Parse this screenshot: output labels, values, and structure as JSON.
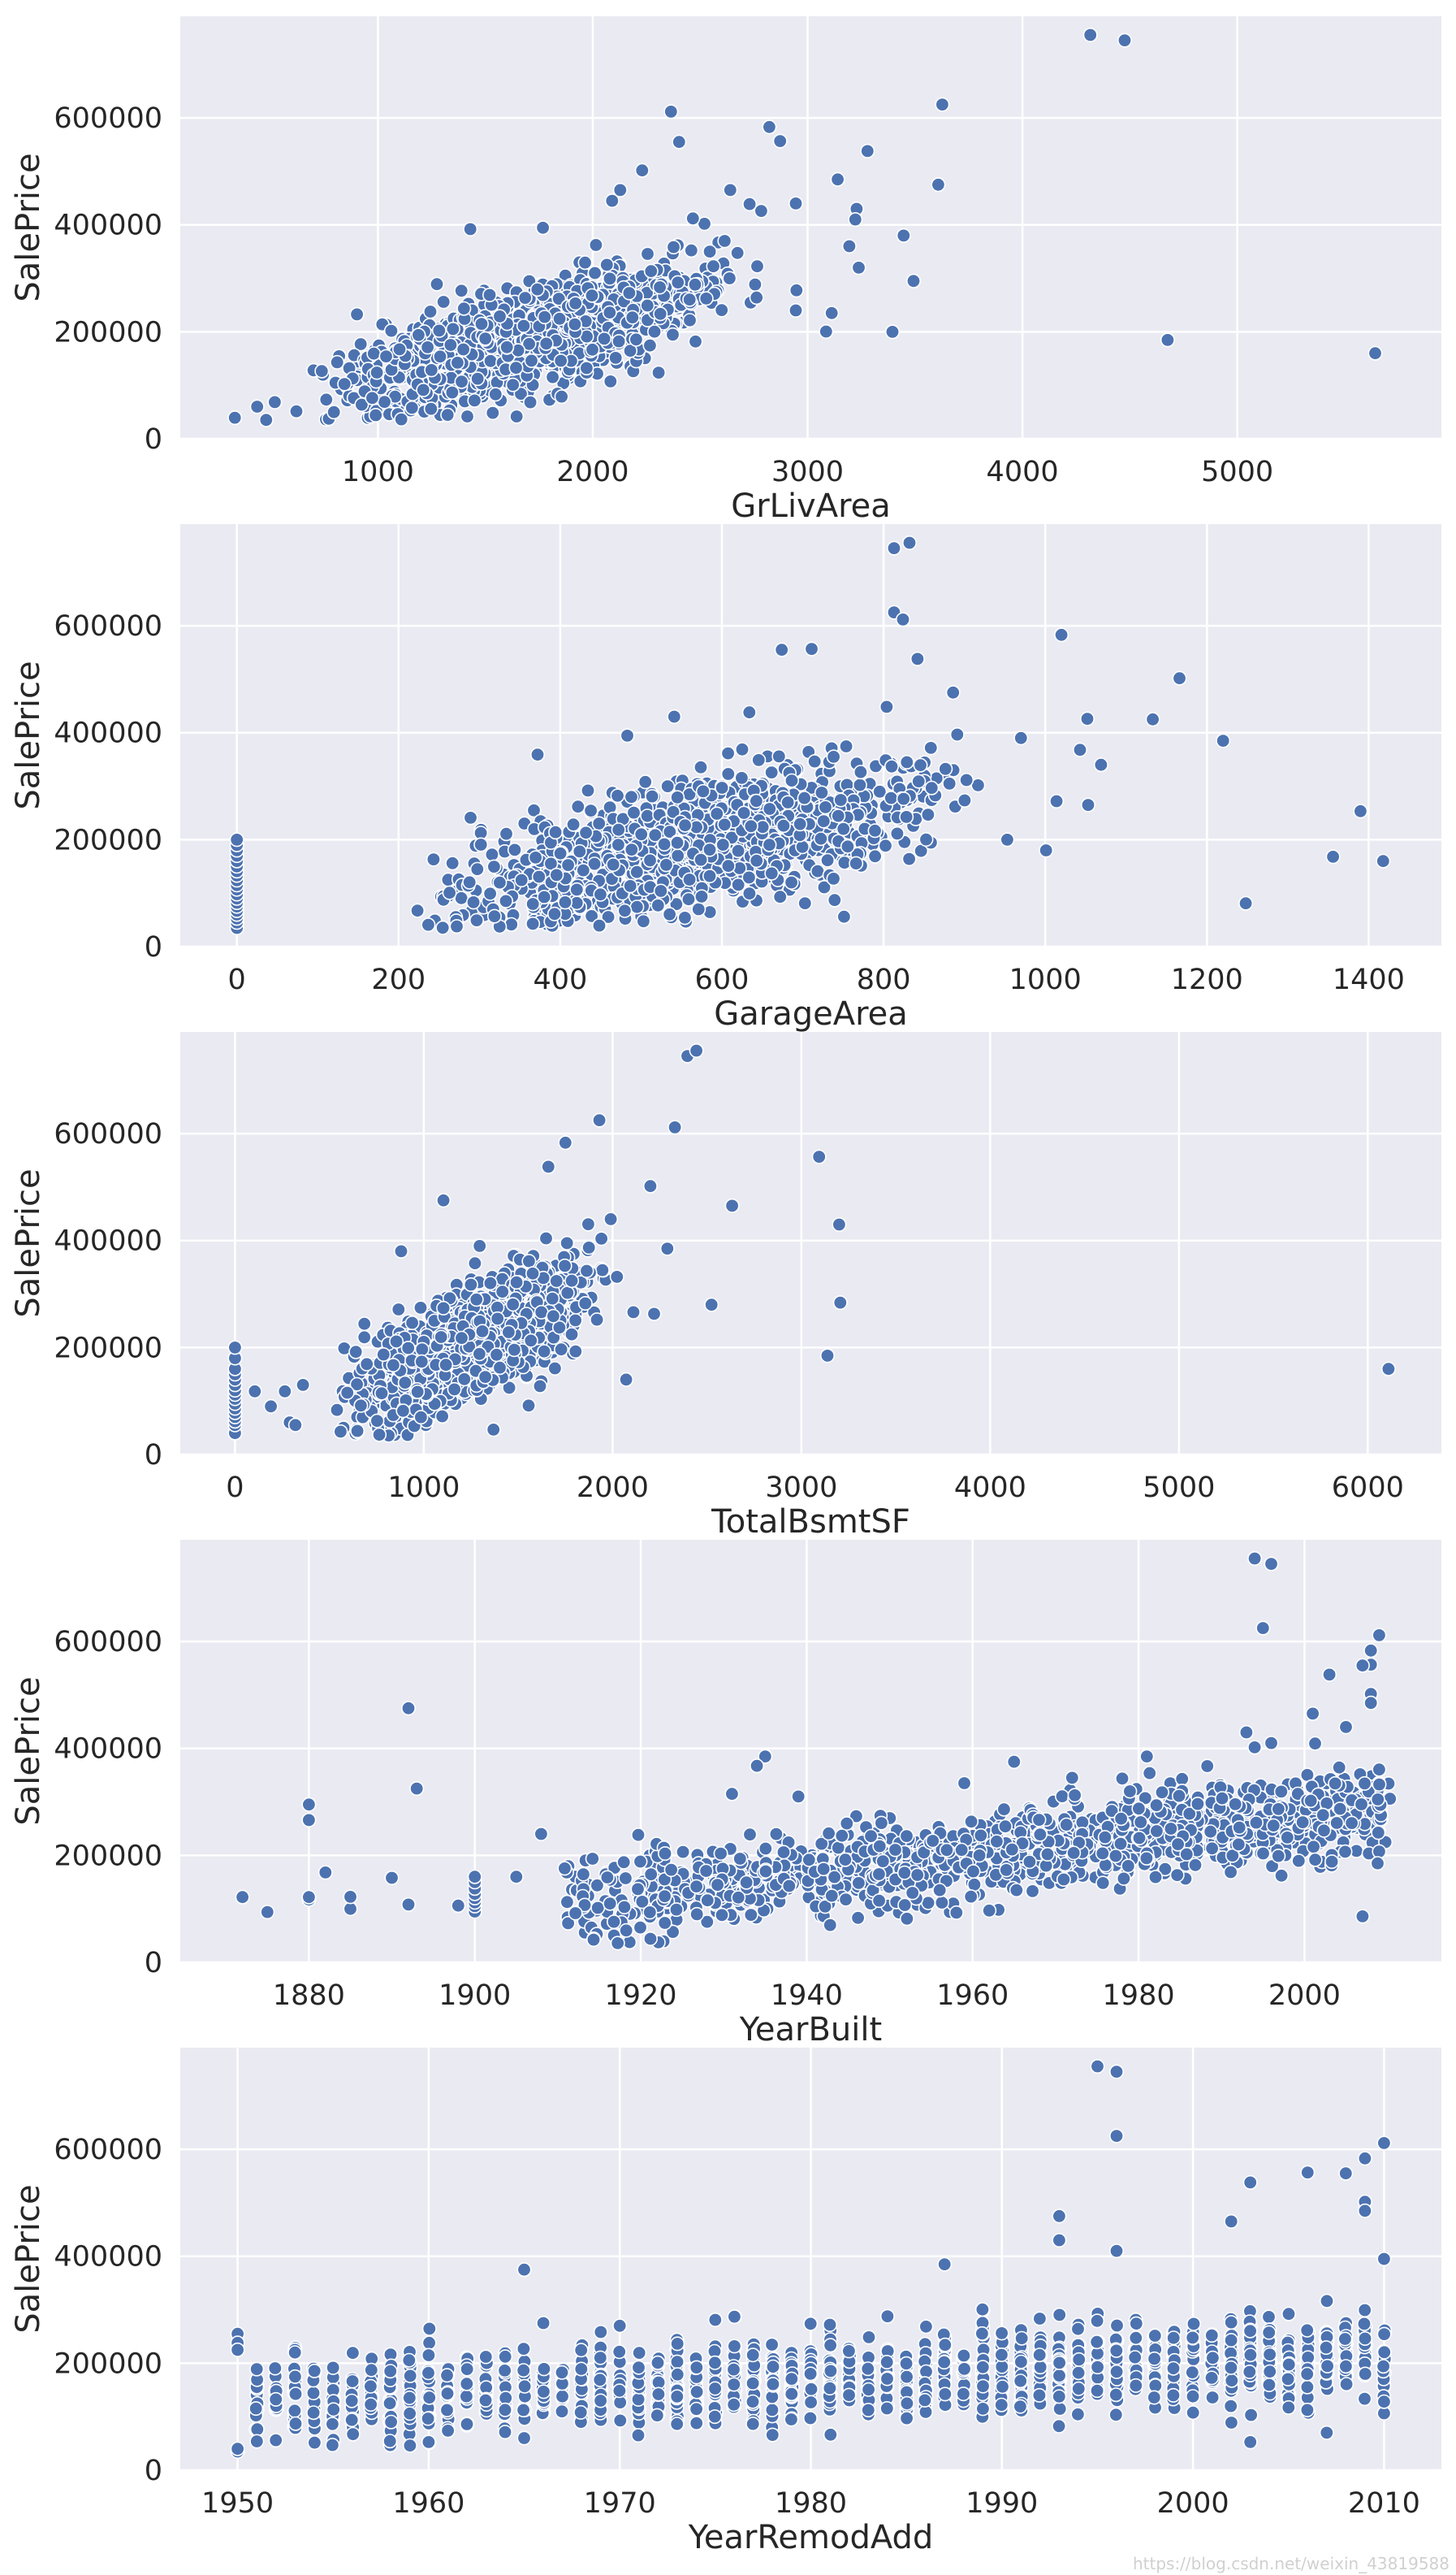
{
  "figure": {
    "watermark": "https://blog.csdn.net/weixin_43819588"
  },
  "chart_data": [
    {
      "type": "scatter",
      "id": "grlivarea",
      "title": "",
      "xlabel": "GrLivArea",
      "ylabel": "SalePrice",
      "xlim": [
        80,
        5950
      ],
      "ylim": [
        0,
        790000
      ],
      "xticks": [
        1000,
        2000,
        3000,
        4000,
        5000
      ],
      "yticks": [
        0,
        200000,
        400000,
        600000
      ],
      "grid": true,
      "marker_color": "#4C72B0",
      "cluster": {
        "x_min": 500,
        "x_max": 2900,
        "y_intercept": 5000,
        "slope": 108,
        "spread": 45000,
        "count": 1380,
        "y_min": 35000
      },
      "points": [
        [
          334,
          39300
        ],
        [
          438,
          60000
        ],
        [
          480,
          35311
        ],
        [
          520,
          68500
        ],
        [
          4316,
          755000
        ],
        [
          4476,
          745000
        ],
        [
          4676,
          184750
        ],
        [
          5642,
          160000
        ],
        [
          3627,
          625000
        ],
        [
          2364,
          611657
        ],
        [
          2822,
          582933
        ],
        [
          2872,
          556581
        ],
        [
          2402,
          555000
        ],
        [
          3279,
          538000
        ],
        [
          3140,
          485000
        ],
        [
          3608,
          475000
        ],
        [
          3228,
          430000
        ],
        [
          3222,
          410000
        ],
        [
          3447,
          380000
        ],
        [
          3194,
          360000
        ],
        [
          3238,
          320000
        ],
        [
          3493,
          295000
        ],
        [
          3112,
          235000
        ],
        [
          3086,
          200500
        ],
        [
          3395,
          200000
        ],
        [
          2945,
          440000
        ],
        [
          2784,
          426000
        ],
        [
          2730,
          438780
        ],
        [
          2640,
          465000
        ],
        [
          2520,
          402000
        ],
        [
          2466,
          412000
        ],
        [
          2230,
          501837
        ],
        [
          2128,
          465000
        ],
        [
          2090,
          445000
        ],
        [
          1430,
          392000
        ],
        [
          1768,
          394617
        ],
        [
          2945,
          240000
        ],
        [
          2948,
          277500
        ]
      ]
    },
    {
      "type": "scatter",
      "id": "garagearea",
      "title": "",
      "xlabel": "GarageArea",
      "ylabel": "SalePrice",
      "xlim": [
        -70,
        1490
      ],
      "ylim": [
        0,
        790000
      ],
      "xticks": [
        0,
        200,
        400,
        600,
        800,
        1000,
        1200,
        1400
      ],
      "yticks": [
        0,
        200000,
        400000,
        600000
      ],
      "grid": true,
      "marker_color": "#4C72B0",
      "cluster": {
        "x_min": 180,
        "x_max": 950,
        "y_intercept": 20000,
        "slope": 300,
        "spread": 55000,
        "count": 1300,
        "y_min": 35000
      },
      "points": [
        [
          0,
          34900
        ],
        [
          0,
          45000
        ],
        [
          0,
          52500
        ],
        [
          0,
          60000
        ],
        [
          0,
          67000
        ],
        [
          0,
          75000
        ],
        [
          0,
          82000
        ],
        [
          0,
          90000
        ],
        [
          0,
          98000
        ],
        [
          0,
          107000
        ],
        [
          0,
          115000
        ],
        [
          0,
          124000
        ],
        [
          0,
          133000
        ],
        [
          0,
          141000
        ],
        [
          0,
          150000
        ],
        [
          0,
          160000
        ],
        [
          0,
          170000
        ],
        [
          0,
          180000
        ],
        [
          0,
          190000
        ],
        [
          0,
          200000
        ],
        [
          813,
          745000
        ],
        [
          832,
          755000
        ],
        [
          813,
          625000
        ],
        [
          824,
          611657
        ],
        [
          1020,
          582933
        ],
        [
          711,
          556581
        ],
        [
          674,
          555000
        ],
        [
          842,
          538000
        ],
        [
          1166,
          501837
        ],
        [
          886,
          475000
        ],
        [
          1052,
          426000
        ],
        [
          1133,
          424870
        ],
        [
          1220,
          385000
        ],
        [
          1390,
          253293
        ],
        [
          1356,
          168000
        ],
        [
          1418,
          160000
        ],
        [
          1248,
          81000
        ],
        [
          1014,
          272000
        ],
        [
          1053,
          265000
        ],
        [
          1069,
          340000
        ],
        [
          1043,
          368000
        ],
        [
          970,
          390000
        ],
        [
          1001,
          180000
        ],
        [
          953,
          200000
        ],
        [
          541,
          430000
        ],
        [
          372,
          359000
        ],
        [
          483,
          394432
        ],
        [
          634,
          438000
        ]
      ]
    },
    {
      "type": "scatter",
      "id": "totalbsmtsf",
      "title": "",
      "xlabel": "TotalBsmtSF",
      "ylabel": "SalePrice",
      "xlim": [
        -290,
        6390
      ],
      "ylim": [
        0,
        790000
      ],
      "xticks": [
        0,
        1000,
        2000,
        3000,
        4000,
        5000,
        6000
      ],
      "yticks": [
        0,
        200000,
        400000,
        600000
      ],
      "grid": true,
      "marker_color": "#4C72B0",
      "cluster": {
        "x_min": 400,
        "x_max": 2100,
        "y_intercept": 20000,
        "slope": 148,
        "spread": 50000,
        "count": 1280,
        "y_min": 35000
      },
      "points": [
        [
          0,
          40000
        ],
        [
          0,
          55000
        ],
        [
          0,
          62000
        ],
        [
          0,
          70000
        ],
        [
          0,
          78000
        ],
        [
          0,
          86000
        ],
        [
          0,
          95000
        ],
        [
          0,
          104000
        ],
        [
          0,
          112000
        ],
        [
          0,
          120000
        ],
        [
          0,
          130000
        ],
        [
          0,
          140000
        ],
        [
          0,
          150000
        ],
        [
          0,
          160000
        ],
        [
          0,
          180000
        ],
        [
          0,
          200000
        ],
        [
          105,
          118000
        ],
        [
          190,
          90000
        ],
        [
          264,
          118000
        ],
        [
          290,
          60000
        ],
        [
          320,
          55000
        ],
        [
          360,
          130000
        ],
        [
          2396,
          745000
        ],
        [
          2444,
          755000
        ],
        [
          1930,
          625000
        ],
        [
          2330,
          611657
        ],
        [
          1750,
          582933
        ],
        [
          3094,
          556581
        ],
        [
          1660,
          538000
        ],
        [
          2200,
          501837
        ],
        [
          1104,
          475000
        ],
        [
          2633,
          465000
        ],
        [
          3200,
          430000
        ],
        [
          2290,
          385000
        ],
        [
          3138,
          184750
        ],
        [
          3206,
          284000
        ],
        [
          2524,
          280000
        ],
        [
          6110,
          160000
        ],
        [
          2110,
          266000
        ],
        [
          2220,
          263000
        ],
        [
          2072,
          140000
        ],
        [
          880,
          380000
        ],
        [
          1990,
          440000
        ]
      ]
    },
    {
      "type": "scatter",
      "id": "yearbuilt",
      "title": "",
      "xlabel": "YearBuilt",
      "ylabel": "SalePrice",
      "xlim": [
        1864.5,
        2016.5
      ],
      "ylim": [
        0,
        790000
      ],
      "xticks": [
        1880,
        1900,
        1920,
        1940,
        1960,
        1980,
        2000
      ],
      "yticks": [
        0,
        200000,
        400000,
        600000
      ],
      "grid": true,
      "marker_color": "#4C72B0",
      "cluster": {
        "x_min": 1910,
        "x_max": 2010,
        "integer_x": true,
        "jitter": 0.35,
        "y_intercept": 110000,
        "slope": 1800,
        "spread": 40000,
        "count": 1250,
        "y_min": 35000
      },
      "points": [
        [
          1872,
          122000
        ],
        [
          1875,
          94000
        ],
        [
          1880,
          117500
        ],
        [
          1880,
          122000
        ],
        [
          1880,
          265979
        ],
        [
          1880,
          295000
        ],
        [
          1882,
          168000
        ],
        [
          1885,
          100000
        ],
        [
          1885,
          122500
        ],
        [
          1890,
          158000
        ],
        [
          1892,
          475000
        ],
        [
          1893,
          325000
        ],
        [
          1892,
          108000
        ],
        [
          1898,
          106000
        ],
        [
          1900,
          95000
        ],
        [
          1900,
          105000
        ],
        [
          1900,
          112000
        ],
        [
          1900,
          120000
        ],
        [
          1900,
          128000
        ],
        [
          1900,
          138000
        ],
        [
          1900,
          150000
        ],
        [
          1900,
          160000
        ],
        [
          1905,
          160000
        ],
        [
          1908,
          240000
        ],
        [
          1994,
          755000
        ],
        [
          1996,
          745000
        ],
        [
          1995,
          625000
        ],
        [
          2009,
          611657
        ],
        [
          2008,
          582933
        ],
        [
          2008,
          556581
        ],
        [
          2003,
          538000
        ],
        [
          2007,
          555000
        ],
        [
          2008,
          501837
        ],
        [
          2008,
          485000
        ],
        [
          1993,
          430000
        ],
        [
          1994,
          402000
        ],
        [
          1996,
          410000
        ],
        [
          1981,
          385000
        ],
        [
          1935,
          385000
        ],
        [
          1934,
          367294
        ],
        [
          1931,
          315000
        ],
        [
          1939,
          310000
        ],
        [
          1965,
          375000
        ],
        [
          1959,
          335000
        ],
        [
          1972,
          345000
        ],
        [
          2007,
          86000
        ],
        [
          2001,
          465000
        ],
        [
          2005,
          440000
        ]
      ]
    },
    {
      "type": "scatter",
      "id": "yearremodadd",
      "title": "",
      "xlabel": "YearRemodAdd",
      "ylabel": "SalePrice",
      "xlim": [
        1947,
        2013
      ],
      "ylim": [
        0,
        790000
      ],
      "xticks": [
        1950,
        1960,
        1970,
        1980,
        1990,
        2000,
        2010
      ],
      "yticks": [
        0,
        200000,
        400000,
        600000
      ],
      "grid": true,
      "marker_color": "#4C72B0",
      "cluster": {
        "x_min": 1950,
        "x_max": 2010,
        "integer_x": true,
        "jitter": 0.04,
        "y_intercept": 125000,
        "slope": 1500,
        "spread": 40000,
        "count": 1350,
        "y_min": 40000
      },
      "points": [
        [
          1950,
          34900
        ],
        [
          1950,
          40000
        ],
        [
          1950,
          255000
        ],
        [
          1950,
          238000
        ],
        [
          1950,
          225000
        ],
        [
          1953,
          225000
        ],
        [
          1952,
          56000
        ],
        [
          1953,
          220000
        ],
        [
          1960,
          215000
        ],
        [
          1965,
          375000
        ],
        [
          1966,
          275000
        ],
        [
          1970,
          270000
        ],
        [
          1975,
          281000
        ],
        [
          1976,
          287000
        ],
        [
          1981,
          272000
        ],
        [
          1995,
          755000
        ],
        [
          1996,
          745000
        ],
        [
          1996,
          625000
        ],
        [
          2010,
          611657
        ],
        [
          2009,
          582933
        ],
        [
          2006,
          556581
        ],
        [
          2008,
          555000
        ],
        [
          2003,
          538000
        ],
        [
          2009,
          501837
        ],
        [
          2009,
          485000
        ],
        [
          1993,
          475000
        ],
        [
          2002,
          465000
        ],
        [
          1993,
          430000
        ],
        [
          1987,
          385000
        ],
        [
          1996,
          410000
        ],
        [
          2010,
          395000
        ],
        [
          2003,
          52500
        ],
        [
          2010,
          128000
        ],
        [
          2007,
          70000
        ],
        [
          1965,
          60000
        ]
      ]
    }
  ]
}
